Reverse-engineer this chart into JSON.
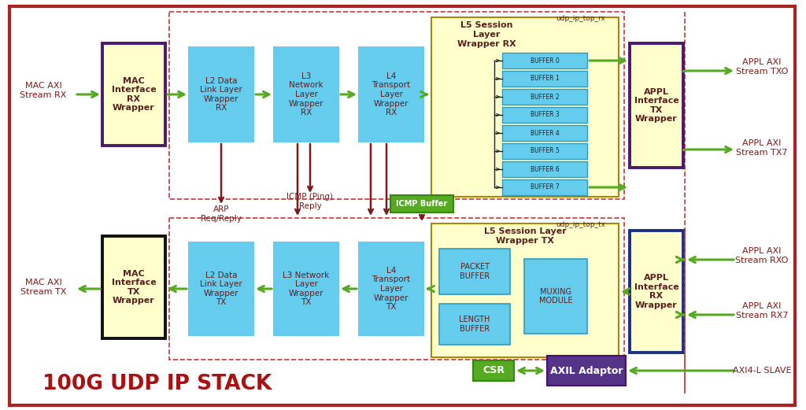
{
  "title": "100G UDP IP STACK",
  "bg_color": "#ffffff",
  "outer_border_color": "#aa2222",
  "cyan_box_color": "#66ccee",
  "cyan_box_text_color": "#5a2020",
  "yellow_box_color": "#ffffcc",
  "green_color": "#55aa22",
  "purple_color": "#4a1a6a",
  "dark_blue_color": "#1a3080",
  "black_color": "#111111",
  "dark_red": "#7a1a1a",
  "arrow_green": "#55aa22",
  "arrow_darkred": "#7a1a1a",
  "udp_top_rx_label": "udp_ip_top_rx",
  "udp_top_tx_label": "udp_ip_top_tx",
  "label_mac_axi_rx": "MAC AXI\nStream RX",
  "label_mac_axi_tx": "MAC AXI\nStream TX",
  "label_appl_axi_txo": "APPL AXI\nStream TXO",
  "label_appl_axi_tx7": "APPL AXI\nStream TX7",
  "label_appl_axi_rxo": "APPL AXI\nStream RXO",
  "label_appl_axi_rx7": "APPL AXI\nStream RX7",
  "label_axi4l_slave": "AXI4-L SLAVE",
  "label_mac_rx": "MAC\nInterface\nRX\nWrapper",
  "label_mac_tx": "MAC\nInterface\nTX\nWrapper",
  "label_l2_rx": "L2 Data\nLink Layer\nWrapper\nRX",
  "label_l3_rx": "L3\nNetwork\nLayer\nWrapper\nRX",
  "label_l4_rx": "L4\nTransport\nLayer\nWrapper\nRX",
  "label_l5_rx": "L5 Session\nLayer\nWrapper RX",
  "label_l2_tx": "L2 Data\nLink Layer\nWrapper\nTX",
  "label_l3_tx": "L3 Network\nLayer\nWrapper\nTX",
  "label_l4_tx": "L4\nTransport\nLayer\nWrapper\nTX",
  "label_l5_tx": "L5 Session Layer\nWrapper TX",
  "label_appl_tx": "APPL\nInterface\nTX\nWrapper",
  "label_appl_rx": "APPL\nInterface\nRX\nWrapper",
  "label_csr": "CSR",
  "label_axil": "AXIL Adaptor",
  "label_icmp_buf": "ICMP Buffer",
  "label_arp": "ARP\nReq/Reply",
  "label_icmp_ping": "ICMP (Ping)\nReply",
  "label_packet_buffer": "PACKET\nBUFFER",
  "label_length_buffer": "LENGTH\nBUFFER",
  "label_muxing": "MUXING\nMODULE",
  "buffers": [
    "BUFFER 0",
    "BUFFER 1",
    "BUFFER 2",
    "BUFFER 3",
    "BUFFER 4",
    "BUFFER 5",
    "BUFFER 6",
    "BUFFER 7"
  ]
}
